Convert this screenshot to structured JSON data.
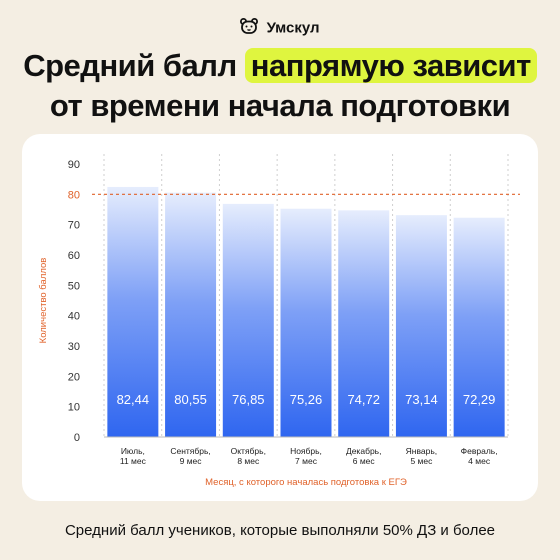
{
  "brand": {
    "name": "Умскул",
    "logo_icon": "bear-icon"
  },
  "headline": {
    "part1": "Средний балл",
    "highlight": "напрямую зависит",
    "line2": "от времени начала подготовки",
    "highlight_color": "#dff53f"
  },
  "caption": "Средний балл учеников, которые выполняли 50% ДЗ и более",
  "chart_data": {
    "type": "bar",
    "categories": [
      [
        "Июль,",
        "11 мес"
      ],
      [
        "Сентябрь,",
        "9 мес"
      ],
      [
        "Октябрь,",
        "8 мес"
      ],
      [
        "Ноябрь,",
        "7 мес"
      ],
      [
        "Декабрь,",
        "6 мес"
      ],
      [
        "Январь,",
        "5 мес"
      ],
      [
        "Февраль,",
        "4 мес"
      ]
    ],
    "values": [
      82.44,
      80.55,
      76.85,
      75.26,
      74.72,
      73.14,
      72.29
    ],
    "value_labels": [
      "82,44",
      "80,55",
      "76,85",
      "75,26",
      "74,72",
      "73,14",
      "72,29"
    ],
    "ylim": [
      0,
      90
    ],
    "yticks": [
      0,
      10,
      20,
      30,
      40,
      50,
      60,
      70,
      80,
      90
    ],
    "reference_line": 80,
    "xlabel": "Месяц, с которого началась подготовка к ЕГЭ",
    "ylabel": "Количество баллов",
    "grid": "vertical dashed",
    "colors": {
      "bar_bottom": "#2f66f0",
      "bar_top": "#e6edfd",
      "reference": "#e0622a",
      "axis_label": "#e0622a"
    }
  }
}
